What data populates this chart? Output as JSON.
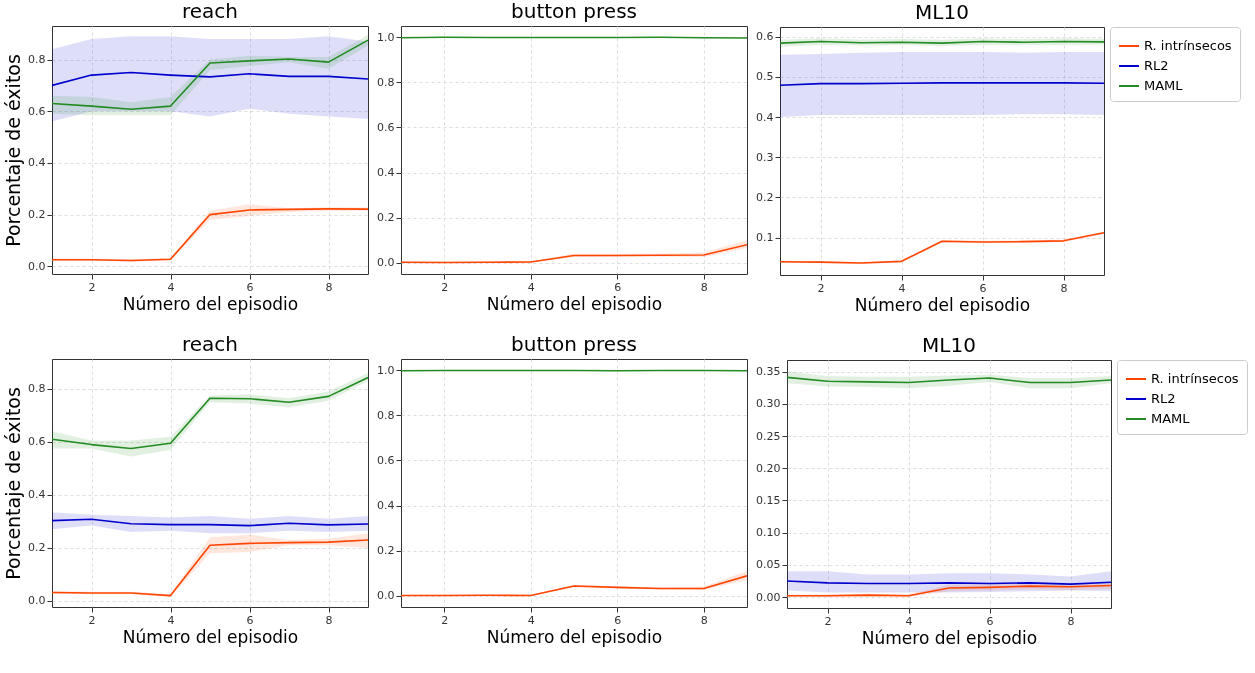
{
  "chart_data": [
    {
      "type": "line",
      "title": "reach",
      "xlabel": "Número del episodio",
      "ylabel": "Porcentaje de éxitos",
      "x": [
        1,
        2,
        3,
        4,
        5,
        6,
        7,
        8,
        9
      ],
      "xlim": [
        1,
        9
      ],
      "xticks": [
        2,
        4,
        6,
        8
      ],
      "ylim": [
        -0.03,
        0.93
      ],
      "yticks": [
        {
          "value": 0,
          "label": "0.0"
        },
        0.2,
        0.4,
        0.6,
        0.8
      ],
      "grid": true,
      "series": [
        {
          "color": "#ff4500",
          "values": [
            0.025,
            0.025,
            0.022,
            0.027,
            0.2,
            0.218,
            0.22,
            0.222,
            0.221
          ],
          "lower": [
            0.02,
            0.02,
            0.017,
            0.022,
            0.18,
            0.195,
            0.21,
            0.215,
            0.215
          ],
          "upper": [
            0.03,
            0.03,
            0.027,
            0.032,
            0.215,
            0.24,
            0.225,
            0.228,
            0.227
          ]
        },
        {
          "color": "#0000cd",
          "values": [
            0.7,
            0.74,
            0.75,
            0.74,
            0.733,
            0.745,
            0.735,
            0.735,
            0.725
          ],
          "lower": [
            0.56,
            0.6,
            0.6,
            0.6,
            0.58,
            0.61,
            0.59,
            0.58,
            0.57
          ],
          "upper": [
            0.84,
            0.88,
            0.89,
            0.89,
            0.88,
            0.88,
            0.88,
            0.89,
            0.87
          ]
        },
        {
          "color": "#228b22",
          "values": [
            0.63,
            0.62,
            0.608,
            0.62,
            0.787,
            0.795,
            0.802,
            0.79,
            0.875
          ],
          "lower": [
            0.59,
            0.585,
            0.585,
            0.585,
            0.76,
            0.775,
            0.79,
            0.765,
            0.855
          ],
          "upper": [
            0.66,
            0.655,
            0.635,
            0.655,
            0.8,
            0.815,
            0.81,
            0.81,
            0.895
          ]
        }
      ]
    },
    {
      "type": "line",
      "title": "button press",
      "xlabel": "Número del episodio",
      "x": [
        1,
        2,
        3,
        4,
        5,
        6,
        7,
        8,
        9
      ],
      "xlim": [
        1,
        9
      ],
      "xticks": [
        2,
        4,
        6,
        8
      ],
      "ylim": [
        -0.05,
        1.05
      ],
      "yticks": [
        {
          "value": 0,
          "label": "0.0"
        },
        0.2,
        0.4,
        0.6,
        0.8,
        {
          "value": 1,
          "label": "1.0"
        }
      ],
      "grid": true,
      "series": [
        {
          "color": "#ff4500",
          "values": [
            0.002,
            0.001,
            0.002,
            0.003,
            0.032,
            0.032,
            0.033,
            0.034,
            0.08
          ],
          "lower": [
            0,
            0,
            0,
            0,
            0.025,
            0.027,
            0.028,
            0.025,
            0.065
          ],
          "upper": [
            0.005,
            0.005,
            0.005,
            0.006,
            0.04,
            0.04,
            0.04,
            0.045,
            0.1
          ]
        },
        {
          "color": "#228b22",
          "values": [
            0.998,
            1,
            0.999,
            0.999,
            0.999,
            0.999,
            1,
            0.998,
            0.997
          ]
        }
      ]
    },
    {
      "type": "line",
      "title": "ML10",
      "xlabel": "Número del episodio",
      "x": [
        1,
        2,
        3,
        4,
        5,
        6,
        7,
        8,
        9
      ],
      "xlim": [
        1,
        9
      ],
      "xticks": [
        2,
        4,
        6,
        8
      ],
      "ylim": [
        0.007,
        0.624
      ],
      "yticks": [
        0.1,
        0.2,
        0.3,
        0.4,
        0.5,
        0.6
      ],
      "grid": true,
      "legend": "right",
      "series": [
        {
          "name": "R. intrínsecos",
          "color": "#ff4500",
          "values": [
            0.04,
            0.039,
            0.037,
            0.041,
            0.091,
            0.089,
            0.09,
            0.092,
            0.112
          ],
          "lower": [
            0.038,
            0.037,
            0.035,
            0.039,
            0.088,
            0.086,
            0.087,
            0.089,
            0.109
          ],
          "upper": [
            0.042,
            0.041,
            0.039,
            0.043,
            0.094,
            0.092,
            0.093,
            0.095,
            0.115
          ]
        },
        {
          "name": "RL2",
          "color": "#0000cd",
          "values": [
            0.479,
            0.483,
            0.483,
            0.484,
            0.485,
            0.485,
            0.485,
            0.485,
            0.484
          ],
          "lower": [
            0.4,
            0.405,
            0.405,
            0.405,
            0.405,
            0.405,
            0.407,
            0.407,
            0.405
          ],
          "upper": [
            0.555,
            0.557,
            0.56,
            0.562,
            0.562,
            0.562,
            0.56,
            0.562,
            0.562
          ]
        },
        {
          "name": "MAML",
          "color": "#228b22",
          "values": [
            0.584,
            0.588,
            0.585,
            0.586,
            0.584,
            0.588,
            0.586,
            0.588,
            0.587
          ],
          "lower": [
            0.575,
            0.58,
            0.578,
            0.579,
            0.577,
            0.58,
            0.579,
            0.58,
            0.58
          ],
          "upper": [
            0.592,
            0.596,
            0.593,
            0.594,
            0.592,
            0.596,
            0.594,
            0.596,
            0.595
          ]
        }
      ]
    },
    {
      "type": "line",
      "title": "reach",
      "xlabel": "Número del episodio",
      "ylabel": "Porcentaje de éxitos",
      "x": [
        1,
        2,
        3,
        4,
        5,
        6,
        7,
        8,
        9
      ],
      "xlim": [
        1,
        9
      ],
      "xticks": [
        2,
        4,
        6,
        8
      ],
      "ylim": [
        -0.023,
        0.913
      ],
      "yticks": [
        {
          "value": 0,
          "label": "0.0"
        },
        0.2,
        0.4,
        0.6,
        0.8
      ],
      "grid": true,
      "series": [
        {
          "color": "#ff4500",
          "values": [
            0.032,
            0.03,
            0.03,
            0.02,
            0.21,
            0.217,
            0.22,
            0.222,
            0.23
          ],
          "lower": [
            0.027,
            0.025,
            0.025,
            0.015,
            0.18,
            0.185,
            0.21,
            0.21,
            0.2
          ],
          "upper": [
            0.037,
            0.035,
            0.035,
            0.025,
            0.24,
            0.25,
            0.23,
            0.235,
            0.255
          ]
        },
        {
          "color": "#0000cd",
          "values": [
            0.303,
            0.308,
            0.291,
            0.288,
            0.288,
            0.284,
            0.293,
            0.287,
            0.29
          ],
          "lower": [
            0.27,
            0.285,
            0.26,
            0.265,
            0.255,
            0.255,
            0.265,
            0.26,
            0.265
          ],
          "upper": [
            0.335,
            0.325,
            0.32,
            0.315,
            0.32,
            0.31,
            0.32,
            0.31,
            0.32
          ]
        },
        {
          "color": "#228b22",
          "values": [
            0.61,
            0.59,
            0.575,
            0.595,
            0.765,
            0.763,
            0.75,
            0.772,
            0.843
          ],
          "lower": [
            0.575,
            0.575,
            0.545,
            0.57,
            0.75,
            0.745,
            0.73,
            0.755,
            0.83
          ],
          "upper": [
            0.64,
            0.605,
            0.605,
            0.62,
            0.775,
            0.78,
            0.765,
            0.79,
            0.86
          ]
        }
      ]
    },
    {
      "type": "line",
      "title": "button press",
      "xlabel": "Número del episodio",
      "x": [
        1,
        2,
        3,
        4,
        5,
        6,
        7,
        8,
        9
      ],
      "xlim": [
        1,
        9
      ],
      "xticks": [
        2,
        4,
        6,
        8
      ],
      "ylim": [
        -0.05,
        1.05
      ],
      "yticks": [
        {
          "value": 0,
          "label": "0.0"
        },
        0.2,
        0.4,
        0.6,
        0.8,
        {
          "value": 1,
          "label": "1.0"
        }
      ],
      "grid": true,
      "series": [
        {
          "color": "#ff4500",
          "values": [
            0.001,
            0.001,
            0.002,
            0.001,
            0.043,
            0.037,
            0.032,
            0.032,
            0.088
          ],
          "lower": [
            0,
            0,
            0,
            0,
            0.038,
            0.032,
            0.027,
            0.025,
            0.07
          ],
          "upper": [
            0.004,
            0.004,
            0.005,
            0.004,
            0.048,
            0.042,
            0.037,
            0.04,
            0.11
          ]
        },
        {
          "color": "#228b22",
          "values": [
            0.998,
            0.999,
            0.999,
            0.999,
            0.999,
            0.998,
            0.999,
            0.999,
            0.998
          ]
        }
      ]
    },
    {
      "type": "line",
      "title": "ML10",
      "xlabel": "Número del episodio",
      "x": [
        1,
        2,
        3,
        4,
        5,
        6,
        7,
        8,
        9
      ],
      "xlim": [
        1,
        9
      ],
      "xticks": [
        2,
        4,
        6,
        8
      ],
      "ylim": [
        -0.017,
        0.368
      ],
      "yticks": [
        {
          "value": 0,
          "label": "0.00"
        },
        0.05,
        {
          "value": 0.1,
          "label": "0.10"
        },
        0.15,
        {
          "value": 0.2,
          "label": "0.20"
        },
        0.25,
        {
          "value": 0.3,
          "label": "0.30"
        },
        0.35
      ],
      "grid": true,
      "legend": "right",
      "series": [
        {
          "name": "R. intrínsecos",
          "color": "#ff4500",
          "values": [
            0.002,
            0.002,
            0.003,
            0.002,
            0.014,
            0.015,
            0.017,
            0.016,
            0.018
          ],
          "lower": [
            0,
            0,
            0.001,
            0,
            0.009,
            0.01,
            0.012,
            0.011,
            0.013
          ],
          "upper": [
            0.004,
            0.004,
            0.005,
            0.004,
            0.019,
            0.02,
            0.022,
            0.021,
            0.023
          ]
        },
        {
          "name": "RL2",
          "color": "#0000cd",
          "values": [
            0.025,
            0.022,
            0.021,
            0.021,
            0.022,
            0.021,
            0.022,
            0.02,
            0.023
          ],
          "lower": [
            0.01,
            0.007,
            0.007,
            0.007,
            0.007,
            0.008,
            0.009,
            0.01,
            0.009
          ],
          "upper": [
            0.04,
            0.04,
            0.035,
            0.035,
            0.037,
            0.037,
            0.035,
            0.032,
            0.04
          ]
        },
        {
          "name": "MAML",
          "color": "#228b22",
          "values": [
            0.341,
            0.335,
            0.334,
            0.333,
            0.337,
            0.34,
            0.333,
            0.333,
            0.337
          ],
          "lower": [
            0.332,
            0.327,
            0.326,
            0.324,
            0.328,
            0.334,
            0.324,
            0.324,
            0.332
          ],
          "upper": [
            0.35,
            0.343,
            0.342,
            0.342,
            0.344,
            0.345,
            0.34,
            0.34,
            0.343
          ]
        }
      ]
    }
  ]
}
